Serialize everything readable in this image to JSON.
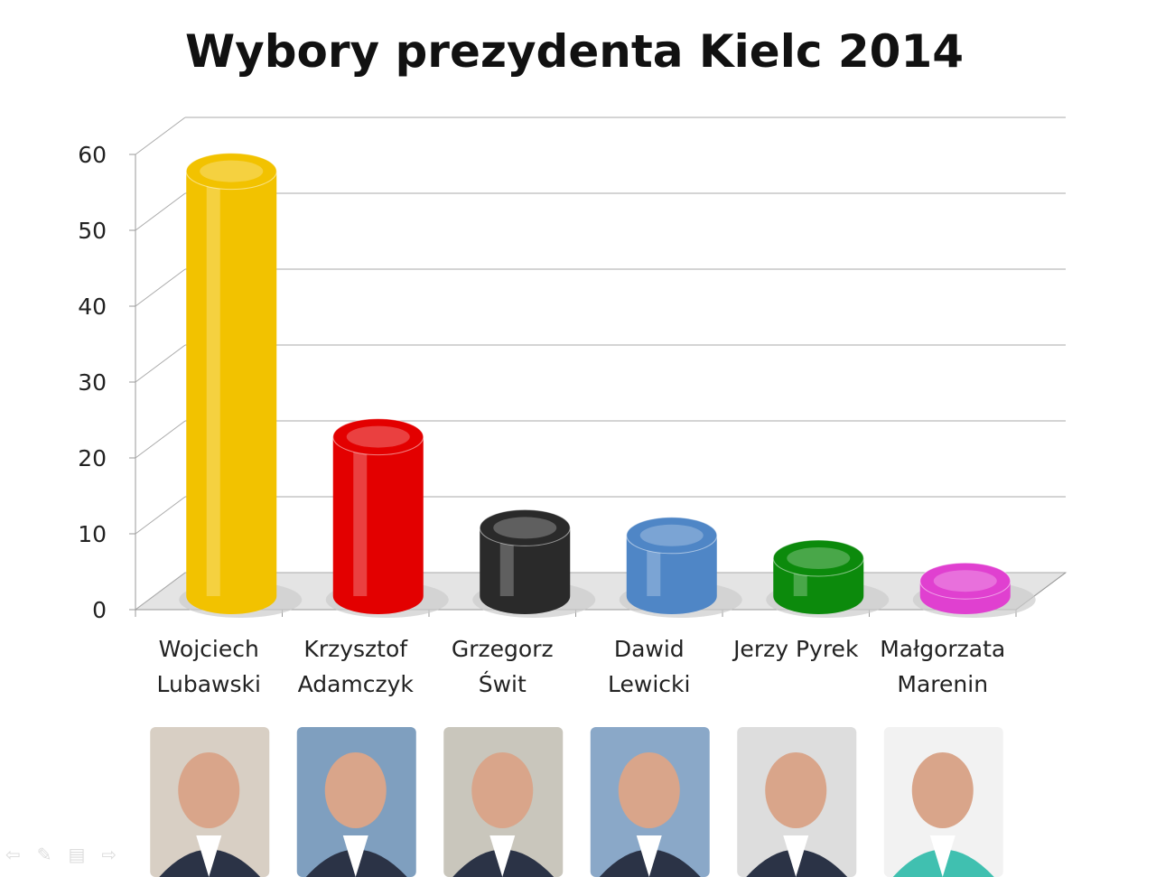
{
  "chart_data": {
    "type": "bar",
    "style": "3d-cylinder",
    "title": "Wybory prezydenta Kielc 2014",
    "categories": [
      [
        "Wojciech",
        "Lubawski"
      ],
      [
        "Krzysztof",
        "Adamczyk"
      ],
      [
        "Grzegorz",
        "Świt"
      ],
      [
        "Dawid",
        "Lewicki"
      ],
      [
        "Jerzy Pyrek",
        ""
      ],
      [
        "Małgorzata",
        "Marenin"
      ]
    ],
    "values": [
      56,
      21,
      9,
      8,
      5,
      2
    ],
    "colors": [
      "#f2c200",
      "#e30000",
      "#2a2a2a",
      "#4f86c6",
      "#0c8a0c",
      "#e040d0"
    ],
    "yticks": [
      0,
      10,
      20,
      30,
      40,
      50,
      60
    ],
    "ylim": [
      0,
      60
    ],
    "grid": true,
    "legend": "none",
    "candidate_photos": true
  }
}
